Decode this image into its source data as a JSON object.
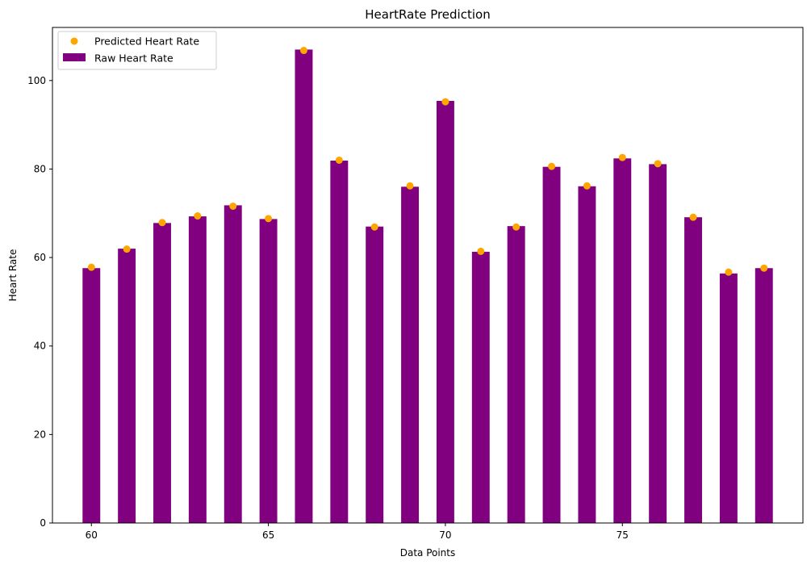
{
  "chart_data": {
    "type": "bar",
    "title": "HeartRate Prediction",
    "xlabel": "Data Points",
    "ylabel": "Heart Rate",
    "x": [
      60,
      61,
      62,
      63,
      64,
      65,
      66,
      67,
      68,
      69,
      70,
      71,
      72,
      73,
      74,
      75,
      76,
      77,
      78,
      79
    ],
    "xlim": [
      58.9,
      80.1
    ],
    "ylim": [
      0,
      112
    ],
    "xticks": [
      60,
      65,
      70,
      75
    ],
    "yticks": [
      0,
      20,
      40,
      60,
      80,
      100
    ],
    "grid": false,
    "legend_position": "top-left",
    "series": [
      {
        "name": "Predicted Heart Rate",
        "kind": "scatter",
        "color": "#ffa500",
        "values": [
          57.8,
          61.9,
          67.9,
          69.4,
          71.6,
          68.8,
          106.8,
          82.0,
          66.9,
          76.2,
          95.2,
          61.4,
          66.9,
          80.6,
          76.2,
          82.6,
          81.2,
          69.1,
          56.7,
          57.6
        ]
      },
      {
        "name": "Raw Heart Rate",
        "kind": "bar",
        "color": "#800080",
        "values": [
          57.6,
          62.0,
          67.8,
          69.3,
          71.8,
          68.7,
          107.0,
          81.9,
          67.0,
          76.0,
          95.4,
          61.3,
          67.1,
          80.5,
          76.1,
          82.4,
          81.1,
          69.1,
          56.4,
          57.6
        ]
      }
    ]
  }
}
